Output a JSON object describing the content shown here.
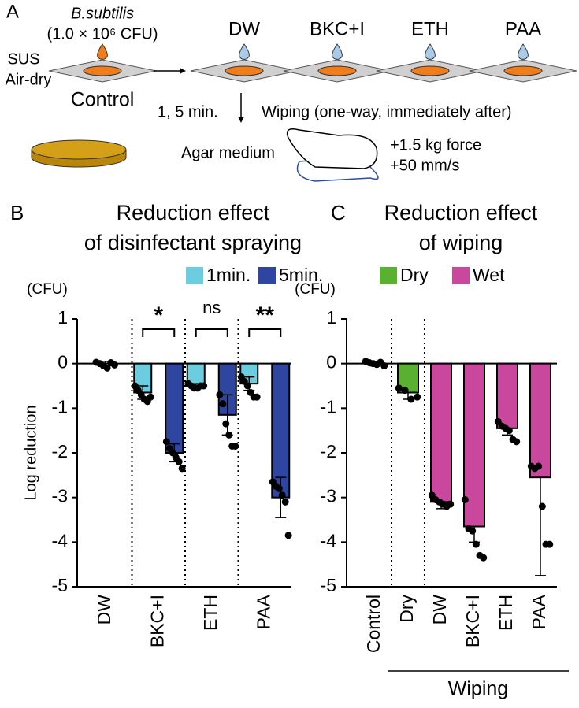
{
  "panel_a": {
    "label": "A",
    "organism": "B.subtilis",
    "inoculum": "(1.0 × 10⁶ CFU)",
    "surface": "SUS",
    "drying": "Air-dry",
    "control": "Control",
    "treatments": [
      "DW",
      "BKC+I",
      "ETH",
      "PAA"
    ],
    "time": "1, 5 min.",
    "wiping": "Wiping (one-way, immediately after)",
    "agar": "Agar medium",
    "force": "+1.5 kg force",
    "speed": "+50 mm/s"
  },
  "chart_data": [
    {
      "type": "bar",
      "panel": "B",
      "title": [
        "Reduction effect",
        "of disinfectant spraying"
      ],
      "y_unit": "(CFU)",
      "ylabel": "Log reduction",
      "categories": [
        "DW",
        "BKC+I",
        "ETH",
        "PAA"
      ],
      "series": [
        {
          "name": "1min.",
          "color": "#6dcde0",
          "values": [
            0,
            -0.65,
            -0.5,
            -0.45
          ],
          "errors": [
            0.05,
            0.15,
            0.05,
            0.15
          ],
          "points": [
            [
              0.03,
              0,
              -0.05,
              -0.1,
              0.02,
              -0.03
            ],
            [
              -0.5,
              -0.6,
              -0.7,
              -0.8,
              -0.85,
              -0.75
            ],
            [
              -0.45,
              -0.5,
              -0.55,
              -0.55,
              -0.5,
              -0.5
            ],
            [
              -0.3,
              -0.4,
              -0.5,
              -0.65,
              -0.75,
              -0.75
            ]
          ]
        },
        {
          "name": "5min.",
          "color": "#2e46a0",
          "values": [
            null,
            -2.0,
            -1.15,
            -3.0
          ],
          "errors": [
            null,
            0.2,
            0.45,
            0.45
          ],
          "points": [
            null,
            [
              -1.75,
              -1.9,
              -2.0,
              -2.1,
              -2.2,
              -2.35
            ],
            [
              -0.7,
              -0.9,
              -1.35,
              -1.6,
              -1.85,
              -1.85
            ],
            [
              -2.65,
              -2.75,
              -2.8,
              -2.95,
              -3.1,
              -3.85
            ]
          ]
        }
      ],
      "significance": [
        null,
        "*",
        "ns",
        "**"
      ],
      "dividers_after": [
        0,
        1,
        2
      ],
      "error_direction": "both",
      "ylim": [
        -5,
        1
      ],
      "yticks": [
        -5,
        -4,
        -3,
        -2,
        -1,
        0,
        1
      ]
    },
    {
      "type": "bar",
      "panel": "C",
      "title": [
        "Reduction effect",
        "of wiping"
      ],
      "y_unit": "(CFU)",
      "categories": [
        "Control",
        "Dry",
        "DW",
        "BKC+I",
        "ETH",
        "PAA"
      ],
      "series": [
        {
          "name": "Dry",
          "color": "#5ab031",
          "values": [
            0,
            -0.65,
            null,
            null,
            null,
            null
          ],
          "errors": [
            0.05,
            0.15,
            null,
            null,
            null,
            null
          ],
          "points": [
            [
              0.05,
              0.02,
              0,
              -0.02,
              0.03,
              -0.05
            ],
            [
              -0.55,
              -0.6,
              -0.8,
              -0.75
            ],
            null,
            null,
            null,
            null
          ]
        },
        {
          "name": "Wet",
          "color": "#c9479c",
          "values": [
            null,
            null,
            -3.1,
            -3.65,
            -1.45,
            -2.55
          ],
          "errors": [
            null,
            null,
            0.15,
            0.35,
            0.15,
            2.2
          ],
          "points": [
            null,
            null,
            [
              -2.95,
              -3.05,
              -3.1,
              -3.15,
              -3.2,
              -3.15
            ],
            [
              -3.05,
              -3.7,
              -3.75,
              -4.05,
              -4.3,
              -4.35
            ],
            [
              -1.3,
              -1.4,
              -1.45,
              -1.5,
              -1.7,
              -1.75
            ],
            [
              -2.3,
              -2.35,
              -2.3,
              -3.2,
              -4.05,
              -4.05
            ]
          ]
        }
      ],
      "group_label": {
        "text": "Wiping",
        "from": 1,
        "to": 5
      },
      "dividers_after": [
        0,
        1
      ],
      "error_direction": "down",
      "ylim": [
        -5,
        1
      ],
      "yticks": [
        -5,
        -4,
        -3,
        -2,
        -1,
        0,
        1
      ]
    }
  ]
}
